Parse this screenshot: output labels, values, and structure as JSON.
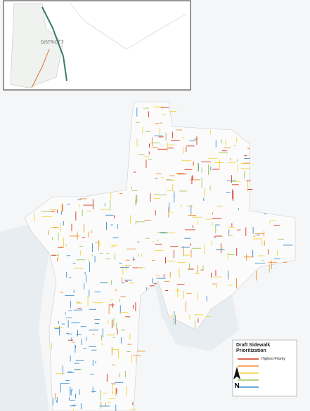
{
  "inset": {
    "label": "DISTRICT 7"
  },
  "legend": {
    "title": "Draft Sidewalk Prioritization",
    "items": [
      "Highest Priority"
    ]
  },
  "north_arrow": "N"
}
